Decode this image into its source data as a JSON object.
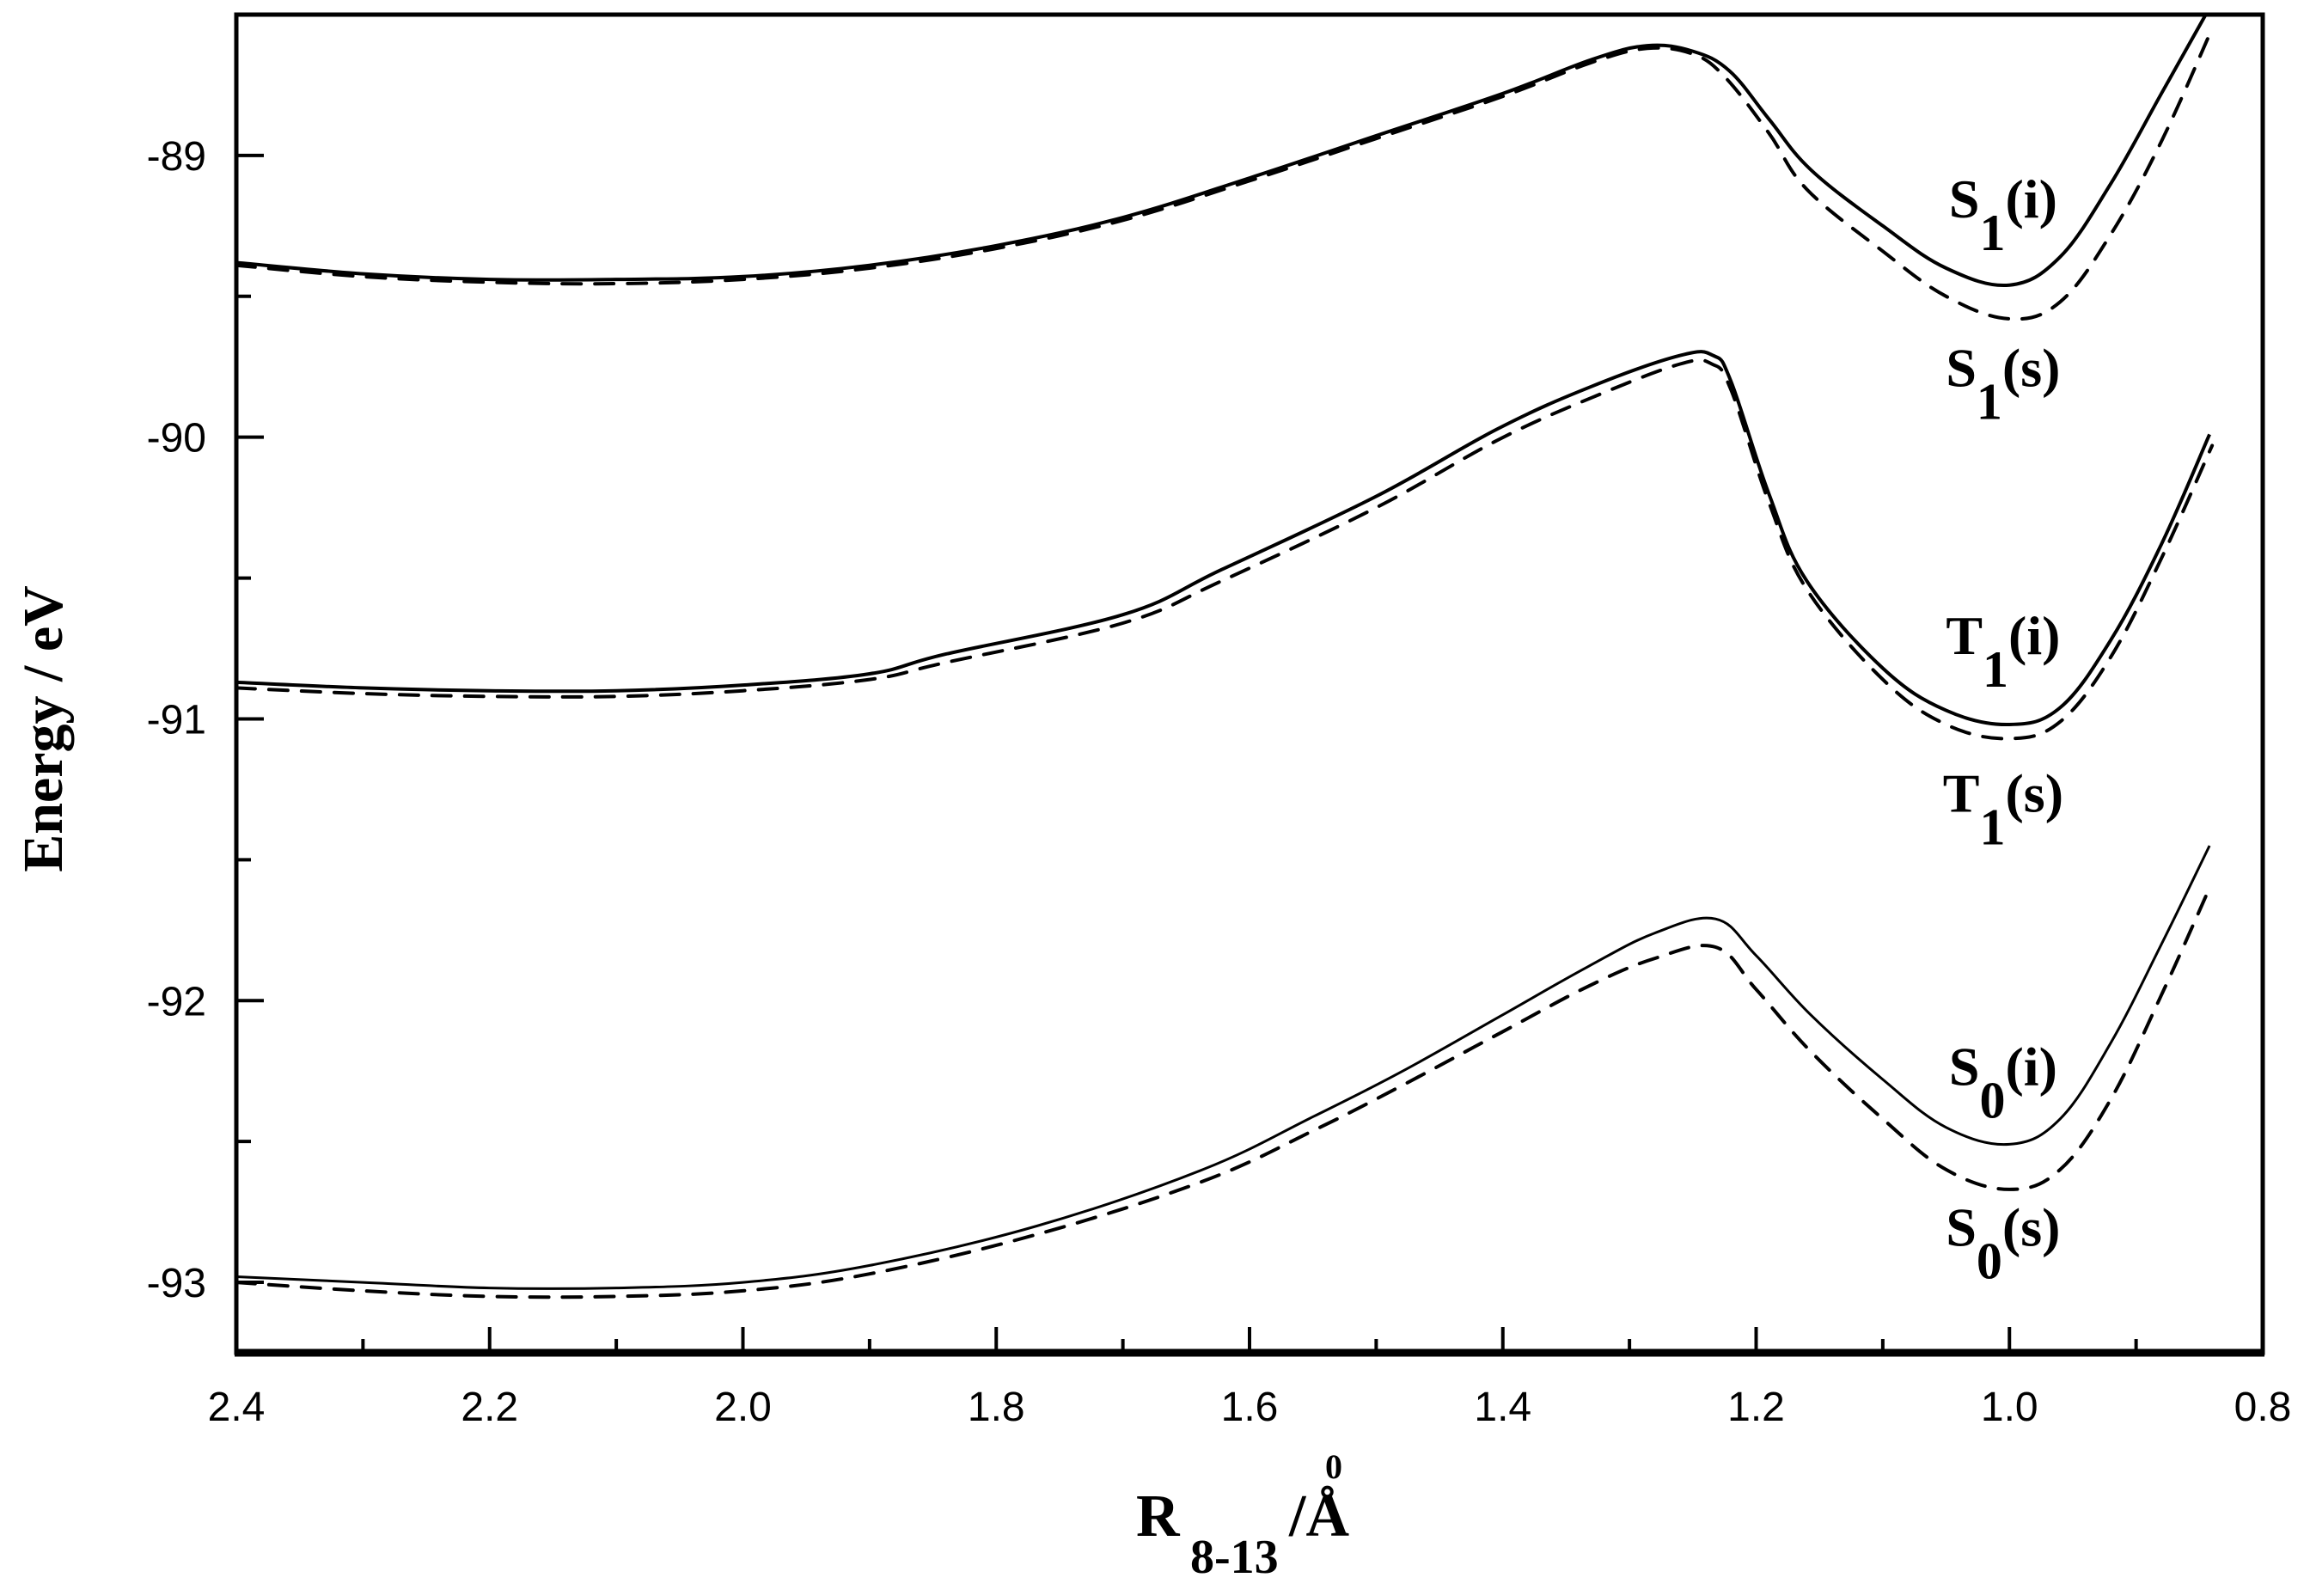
{
  "chart_data": {
    "type": "line",
    "title": "",
    "xlabel": "R_8-13/Å",
    "xlabel_parts": {
      "main": "R",
      "sub": "8-13",
      "suffix": "/Å"
    },
    "ylabel": "Energy / eV",
    "xlim": [
      2.4,
      0.8
    ],
    "x_reversed": true,
    "ylim": [
      -93.25,
      -88.5
    ],
    "grid": false,
    "legend": "inline curve labels at right",
    "x_ticks": {
      "major": [
        2.4,
        2.2,
        2.0,
        1.8,
        1.6,
        1.4,
        1.2,
        1.0,
        0.8
      ],
      "major_labels": [
        "2.4",
        "2.2",
        "2.0",
        "1.8",
        "1.6",
        "1.4",
        "1.2",
        "1.0",
        "0.8"
      ],
      "minor_step": 0.1
    },
    "y_ticks": {
      "major": [
        -89,
        -90,
        -91,
        -92,
        -93
      ],
      "major_labels": [
        "-89",
        "-90",
        "-91",
        "-92",
        "-93"
      ],
      "minor_step": 0.5
    },
    "series": [
      {
        "name": "S1(i)",
        "label_main": "S",
        "label_sub": "1",
        "label_suffix": "(i)",
        "style": "solid",
        "width": 4,
        "points": [
          [
            2.4,
            -89.38
          ],
          [
            2.3,
            -89.42
          ],
          [
            2.2,
            -89.44
          ],
          [
            2.1,
            -89.44
          ],
          [
            2.0,
            -89.43
          ],
          [
            1.9,
            -89.39
          ],
          [
            1.8,
            -89.32
          ],
          [
            1.7,
            -89.22
          ],
          [
            1.6,
            -89.08
          ],
          [
            1.5,
            -88.93
          ],
          [
            1.4,
            -88.78
          ],
          [
            1.33,
            -88.66
          ],
          [
            1.286,
            -88.61
          ],
          [
            1.25,
            -88.63
          ],
          [
            1.221,
            -88.7
          ],
          [
            1.19,
            -88.87
          ],
          [
            1.157,
            -89.05
          ],
          [
            1.1,
            -89.25
          ],
          [
            1.05,
            -89.4
          ],
          [
            1.0,
            -89.46
          ],
          [
            0.96,
            -89.36
          ],
          [
            0.92,
            -89.1
          ],
          [
            0.88,
            -88.78
          ],
          [
            0.845,
            -88.5
          ]
        ]
      },
      {
        "name": "S1(s)",
        "label_main": "S",
        "label_sub": "1",
        "label_suffix": "(s)",
        "style": "dashed",
        "width": 4,
        "points": [
          [
            2.4,
            -89.39
          ],
          [
            2.3,
            -89.43
          ],
          [
            2.2,
            -89.45
          ],
          [
            2.1,
            -89.455
          ],
          [
            2.0,
            -89.44
          ],
          [
            1.9,
            -89.4
          ],
          [
            1.8,
            -89.33
          ],
          [
            1.7,
            -89.23
          ],
          [
            1.6,
            -89.09
          ],
          [
            1.5,
            -88.94
          ],
          [
            1.4,
            -88.79
          ],
          [
            1.33,
            -88.67
          ],
          [
            1.286,
            -88.62
          ],
          [
            1.25,
            -88.64
          ],
          [
            1.225,
            -88.72
          ],
          [
            1.19,
            -88.92
          ],
          [
            1.16,
            -89.12
          ],
          [
            1.1,
            -89.34
          ],
          [
            1.05,
            -89.5
          ],
          [
            1.0,
            -89.58
          ],
          [
            0.96,
            -89.52
          ],
          [
            0.92,
            -89.28
          ],
          [
            0.88,
            -88.95
          ],
          [
            0.84,
            -88.55
          ]
        ]
      },
      {
        "name": "T1(i)",
        "label_main": "T",
        "label_sub": "1",
        "label_suffix": "(i)",
        "style": "solid",
        "width": 4,
        "points": [
          [
            2.4,
            -90.87
          ],
          [
            2.3,
            -90.89
          ],
          [
            2.2,
            -90.9
          ],
          [
            2.1,
            -90.9
          ],
          [
            2.0,
            -90.88
          ],
          [
            1.9,
            -90.84
          ],
          [
            1.84,
            -90.77
          ],
          [
            1.7,
            -90.63
          ],
          [
            1.622,
            -90.47
          ],
          [
            1.5,
            -90.21
          ],
          [
            1.404,
            -89.97
          ],
          [
            1.33,
            -89.82
          ],
          [
            1.26,
            -89.71
          ],
          [
            1.234,
            -89.71
          ],
          [
            1.22,
            -89.8
          ],
          [
            1.19,
            -90.2
          ],
          [
            1.16,
            -90.51
          ],
          [
            1.1,
            -90.82
          ],
          [
            1.05,
            -90.97
          ],
          [
            1.0,
            -91.02
          ],
          [
            0.96,
            -90.96
          ],
          [
            0.92,
            -90.72
          ],
          [
            0.88,
            -90.38
          ],
          [
            0.842,
            -89.99
          ]
        ]
      },
      {
        "name": "T1(s)",
        "label_main": "T",
        "label_sub": "1",
        "label_suffix": "(s)",
        "style": "dashed",
        "width": 4,
        "points": [
          [
            2.4,
            -90.89
          ],
          [
            2.3,
            -90.91
          ],
          [
            2.2,
            -90.92
          ],
          [
            2.1,
            -90.92
          ],
          [
            2.0,
            -90.9
          ],
          [
            1.9,
            -90.86
          ],
          [
            1.84,
            -90.8
          ],
          [
            1.7,
            -90.66
          ],
          [
            1.622,
            -90.51
          ],
          [
            1.5,
            -90.25
          ],
          [
            1.404,
            -90.01
          ],
          [
            1.33,
            -89.86
          ],
          [
            1.26,
            -89.74
          ],
          [
            1.235,
            -89.74
          ],
          [
            1.22,
            -89.83
          ],
          [
            1.19,
            -90.23
          ],
          [
            1.16,
            -90.54
          ],
          [
            1.1,
            -90.86
          ],
          [
            1.05,
            -91.02
          ],
          [
            1.0,
            -91.07
          ],
          [
            0.96,
            -91.01
          ],
          [
            0.92,
            -90.78
          ],
          [
            0.88,
            -90.43
          ],
          [
            0.84,
            -90.03
          ]
        ]
      },
      {
        "name": "S0(i)",
        "label_main": "S",
        "label_sub": "0",
        "label_suffix": "(i)",
        "style": "solid",
        "width": 3,
        "points": [
          [
            2.4,
            -92.98
          ],
          [
            2.3,
            -93.0
          ],
          [
            2.2,
            -93.02
          ],
          [
            2.1,
            -93.02
          ],
          [
            2.0,
            -93.0
          ],
          [
            1.9,
            -92.94
          ],
          [
            1.768,
            -92.8
          ],
          [
            1.637,
            -92.6
          ],
          [
            1.549,
            -92.41
          ],
          [
            1.479,
            -92.25
          ],
          [
            1.4,
            -92.05
          ],
          [
            1.333,
            -91.88
          ],
          [
            1.28,
            -91.76
          ],
          [
            1.232,
            -91.71
          ],
          [
            1.2,
            -91.84
          ],
          [
            1.157,
            -92.05
          ],
          [
            1.1,
            -92.28
          ],
          [
            1.05,
            -92.45
          ],
          [
            1.0,
            -92.51
          ],
          [
            0.96,
            -92.42
          ],
          [
            0.92,
            -92.15
          ],
          [
            0.88,
            -91.8
          ],
          [
            0.842,
            -91.45
          ]
        ]
      },
      {
        "name": "S0(s)",
        "label_main": "S",
        "label_sub": "0",
        "label_suffix": "(s)",
        "style": "dashed",
        "width": 4,
        "points": [
          [
            2.4,
            -93.0
          ],
          [
            2.3,
            -93.03
          ],
          [
            2.2,
            -93.05
          ],
          [
            2.1,
            -93.05
          ],
          [
            2.0,
            -93.03
          ],
          [
            1.9,
            -92.97
          ],
          [
            1.768,
            -92.83
          ],
          [
            1.636,
            -92.64
          ],
          [
            1.549,
            -92.46
          ],
          [
            1.479,
            -92.3
          ],
          [
            1.4,
            -92.11
          ],
          [
            1.333,
            -91.95
          ],
          [
            1.28,
            -91.85
          ],
          [
            1.232,
            -91.81
          ],
          [
            1.2,
            -91.96
          ],
          [
            1.157,
            -92.18
          ],
          [
            1.1,
            -92.42
          ],
          [
            1.05,
            -92.6
          ],
          [
            1.0,
            -92.67
          ],
          [
            0.96,
            -92.6
          ],
          [
            0.92,
            -92.35
          ],
          [
            0.88,
            -91.98
          ],
          [
            0.842,
            -91.6
          ]
        ]
      }
    ],
    "annotations": [
      {
        "series": "S1(i)",
        "x": 1.005,
        "y": -89.22
      },
      {
        "series": "S1(s)",
        "x": 1.005,
        "y": -89.82
      },
      {
        "series": "T1(i)",
        "x": 1.005,
        "y": -90.77
      },
      {
        "series": "T1(s)",
        "x": 1.005,
        "y": -91.33
      },
      {
        "series": "S0(i)",
        "x": 1.005,
        "y": -92.3
      },
      {
        "series": "S0(s)",
        "x": 1.005,
        "y": -92.87
      }
    ]
  },
  "labels": {
    "ylabel": "Energy / eV",
    "xlabel_main": "R",
    "xlabel_sub": "8-13",
    "xlabel_suffix": "/Å",
    "xlabel_ring": "0"
  },
  "colors": {
    "line": "#000000",
    "background": "#ffffff"
  }
}
